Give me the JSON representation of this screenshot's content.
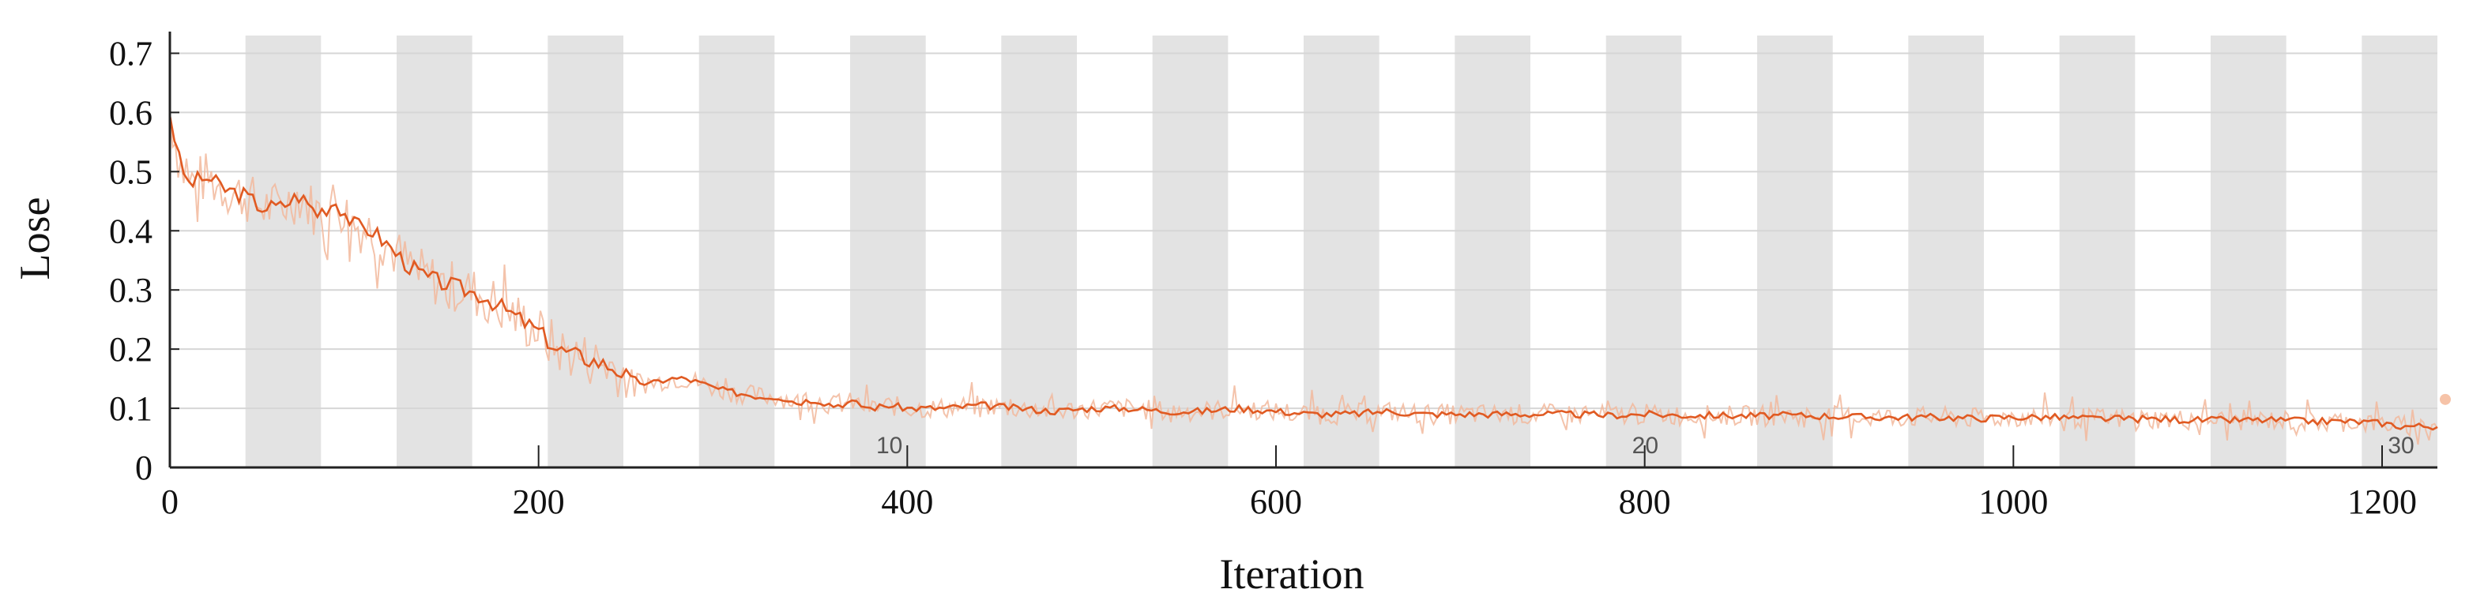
{
  "chart_data": {
    "type": "line",
    "title": "",
    "xlabel": "Iteration",
    "ylabel": "Lose",
    "xlim": [
      0,
      1230
    ],
    "ylim": [
      0,
      0.73
    ],
    "x_ticks": [
      0,
      200,
      400,
      600,
      800,
      1000,
      1200
    ],
    "y_ticks": [
      0,
      0.1,
      0.2,
      0.3,
      0.4,
      0.5,
      0.6,
      0.7
    ],
    "grid": true,
    "epoch_bands": {
      "iterations_per_epoch": 41,
      "shaded": "alternate",
      "labels": [
        {
          "epoch": 10,
          "x": 410
        },
        {
          "epoch": 20,
          "x": 820
        },
        {
          "epoch": 30,
          "x": 1230
        }
      ]
    },
    "series": [
      {
        "role": "smoothed",
        "color": "#e05a22",
        "x": [
          0,
          5,
          10,
          20,
          30,
          40,
          50,
          60,
          70,
          80,
          90,
          100,
          110,
          120,
          130,
          140,
          150,
          160,
          170,
          180,
          190,
          200,
          210,
          220,
          230,
          240,
          250,
          260,
          270,
          280,
          290,
          300,
          310,
          320,
          330,
          340,
          350,
          360,
          370,
          380,
          390,
          400,
          420,
          440,
          460,
          480,
          500,
          520,
          540,
          560,
          580,
          600,
          620,
          640,
          660,
          680,
          700,
          720,
          740,
          760,
          780,
          800,
          820,
          840,
          860,
          880,
          900,
          920,
          940,
          960,
          980,
          1000,
          1020,
          1040,
          1060,
          1080,
          1100,
          1120,
          1140,
          1160,
          1180,
          1200,
          1210,
          1220,
          1230
        ],
        "y": [
          0.6,
          0.52,
          0.48,
          0.49,
          0.47,
          0.46,
          0.44,
          0.44,
          0.46,
          0.43,
          0.45,
          0.41,
          0.4,
          0.37,
          0.34,
          0.32,
          0.31,
          0.3,
          0.29,
          0.27,
          0.25,
          0.23,
          0.2,
          0.19,
          0.18,
          0.17,
          0.15,
          0.14,
          0.15,
          0.15,
          0.14,
          0.13,
          0.125,
          0.12,
          0.12,
          0.11,
          0.115,
          0.105,
          0.11,
          0.1,
          0.105,
          0.1,
          0.1,
          0.105,
          0.1,
          0.095,
          0.1,
          0.1,
          0.095,
          0.095,
          0.1,
          0.095,
          0.09,
          0.09,
          0.095,
          0.09,
          0.09,
          0.09,
          0.09,
          0.09,
          0.088,
          0.09,
          0.088,
          0.088,
          0.087,
          0.088,
          0.087,
          0.085,
          0.085,
          0.085,
          0.083,
          0.085,
          0.085,
          0.083,
          0.082,
          0.082,
          0.08,
          0.08,
          0.08,
          0.078,
          0.078,
          0.075,
          0.07,
          0.07,
          0.07
        ]
      }
    ]
  }
}
